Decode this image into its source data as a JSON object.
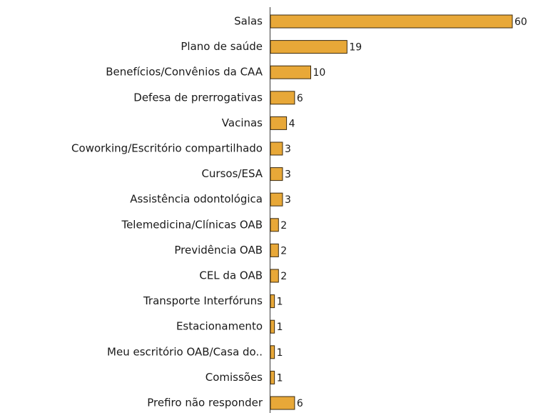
{
  "chart_data": {
    "type": "bar",
    "orientation": "horizontal",
    "categories": [
      "Salas",
      "Plano de saúde",
      "Benefícios/Convênios da CAA",
      "Defesa de prerrogativas",
      "Vacinas",
      "Coworking/Escritório compartilhado",
      "Cursos/ESA",
      "Assistência odontológica",
      "Telemedicina/Clínicas OAB",
      "Previdência OAB",
      "CEL da OAB",
      "Transporte Interfóruns",
      "Estacionamento",
      "Meu escritório OAB/Casa do..",
      "Comissões",
      "Prefiro não responder"
    ],
    "values": [
      60,
      19,
      10,
      6,
      4,
      3,
      3,
      3,
      2,
      2,
      2,
      1,
      1,
      1,
      1,
      6
    ],
    "color": "#e8a838"
  }
}
